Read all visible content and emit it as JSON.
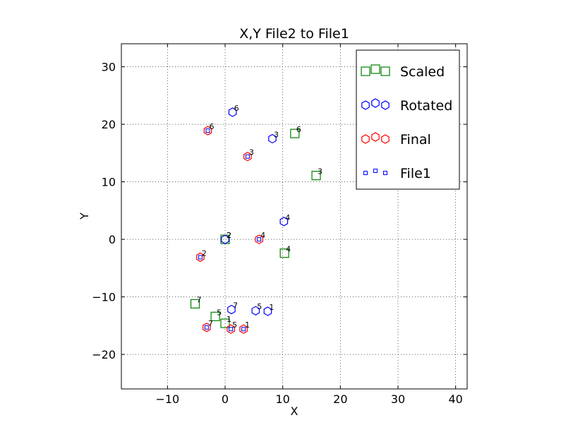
{
  "chart_data": {
    "type": "scatter",
    "title": "X,Y File2 to File1",
    "xlabel": "X",
    "ylabel": "Y",
    "xlim": [
      -18,
      42
    ],
    "ylim": [
      -26,
      34
    ],
    "xticks": [
      -10,
      0,
      10,
      20,
      30,
      40
    ],
    "yticks": [
      -20,
      -10,
      0,
      10,
      20,
      30
    ],
    "xtick_labels": [
      "−10",
      "0",
      "10",
      "20",
      "30",
      "40"
    ],
    "ytick_labels": [
      "−20",
      "−10",
      "0",
      "10",
      "20",
      "30"
    ],
    "grid": true,
    "legend_position": "top-right",
    "colors": {
      "scaled": "#008000",
      "rotated": "#0000ff",
      "final": "#ff0000",
      "file1": "#0000ff"
    },
    "series": [
      {
        "name": "Scaled",
        "marker": "square",
        "color": "#008000",
        "points": [
          {
            "x": 0.0,
            "y": 0.0,
            "label": "2"
          },
          {
            "x": 15.8,
            "y": 11.1,
            "label": "3"
          },
          {
            "x": 10.3,
            "y": -2.4,
            "label": "4"
          },
          {
            "x": -1.7,
            "y": -13.4,
            "label": "5"
          },
          {
            "x": 12.1,
            "y": 18.4,
            "label": "6"
          },
          {
            "x": -5.2,
            "y": -11.2,
            "label": "7"
          },
          {
            "x": 0.0,
            "y": -14.6,
            "label": "1"
          }
        ]
      },
      {
        "name": "Rotated",
        "marker": "hexagon",
        "color": "#0000ff",
        "points": [
          {
            "x": 0.0,
            "y": 0.0,
            "label": "2"
          },
          {
            "x": 8.2,
            "y": 17.5,
            "label": "3"
          },
          {
            "x": 10.2,
            "y": 3.1,
            "label": "4"
          },
          {
            "x": 5.3,
            "y": -12.4,
            "label": "5"
          },
          {
            "x": 1.3,
            "y": 22.1,
            "label": "6"
          },
          {
            "x": 1.1,
            "y": -12.2,
            "label": "7"
          },
          {
            "x": 7.4,
            "y": -12.5,
            "label": "1"
          }
        ]
      },
      {
        "name": "Final",
        "marker": "hexagon",
        "color": "#ff0000",
        "points": [
          {
            "x": -4.3,
            "y": -3.1,
            "label": "2"
          },
          {
            "x": 3.9,
            "y": 14.4,
            "label": "3"
          },
          {
            "x": 5.9,
            "y": 0.0,
            "label": "4"
          },
          {
            "x": 1.0,
            "y": -15.6,
            "label": "5"
          },
          {
            "x": -3.0,
            "y": 18.9,
            "label": "6"
          },
          {
            "x": -3.2,
            "y": -15.3,
            "label": "7"
          },
          {
            "x": 3.2,
            "y": -15.6,
            "label": "1"
          }
        ]
      },
      {
        "name": "File1",
        "marker": "small-square",
        "color": "#0000ff",
        "points": [
          {
            "x": -4.3,
            "y": -3.1
          },
          {
            "x": 3.9,
            "y": 14.4
          },
          {
            "x": 5.9,
            "y": 0.0
          },
          {
            "x": 1.0,
            "y": -15.6
          },
          {
            "x": -3.0,
            "y": 18.9
          },
          {
            "x": -3.2,
            "y": -15.3
          },
          {
            "x": 3.2,
            "y": -15.6
          }
        ]
      }
    ]
  }
}
